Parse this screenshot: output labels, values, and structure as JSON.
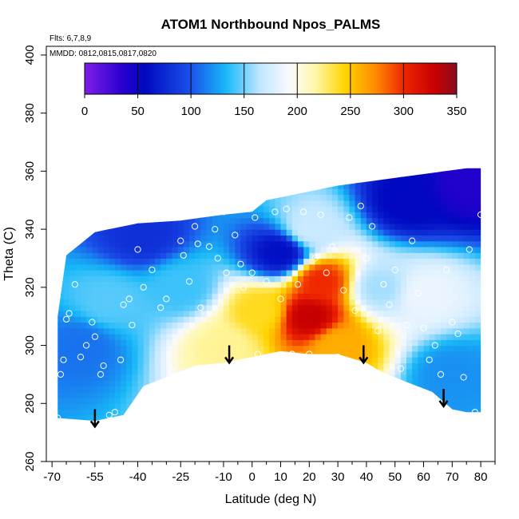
{
  "chart_data": {
    "type": "heatmap",
    "title": "ATOM1 Northbound Npos_PALMS",
    "xlabel": "Latitude (deg N)",
    "ylabel": "Theta (C)",
    "annotations": [
      "Flts: 6,7,8,9",
      "MMDD: 0812,0815,0817,0820"
    ],
    "xlim": [
      -72,
      85
    ],
    "ylim": [
      260,
      403
    ],
    "x_ticks": [
      -70,
      -55,
      -40,
      -25,
      -10,
      0,
      10,
      20,
      30,
      40,
      50,
      60,
      70,
      80
    ],
    "x_tick_labels": [
      "-70",
      "-55",
      "-40",
      "-25",
      "-10",
      "0",
      "10",
      "20",
      "30",
      "40",
      "50",
      "60",
      "70",
      "80"
    ],
    "x_minor_ticks": [
      -65,
      -60,
      -50,
      -45,
      -35,
      -30,
      -20,
      -15,
      -5,
      5,
      15,
      25,
      35,
      45,
      55,
      65,
      75,
      85
    ],
    "y_ticks": [
      260,
      280,
      300,
      320,
      340,
      360,
      380,
      400
    ],
    "y_tick_labels": [
      "260",
      "280",
      "300",
      "320",
      "340",
      "360",
      "380",
      "400"
    ],
    "colorbar": {
      "range": [
        0,
        350
      ],
      "ticks": [
        0,
        50,
        100,
        150,
        200,
        250,
        300,
        350
      ],
      "tick_labels": [
        "0",
        "50",
        "100",
        "150",
        "200",
        "250",
        "300",
        "350"
      ]
    },
    "data_envelope": {
      "top": [
        [
          -68,
          310
        ],
        [
          -65,
          331
        ],
        [
          -55,
          339
        ],
        [
          -40,
          342
        ],
        [
          -25,
          343
        ],
        [
          -10,
          345
        ],
        [
          0,
          346
        ],
        [
          5,
          350
        ],
        [
          15,
          352
        ],
        [
          30,
          355
        ],
        [
          45,
          357
        ],
        [
          60,
          359
        ],
        [
          75,
          361
        ],
        [
          80,
          361
        ]
      ],
      "bottom": [
        [
          80,
          277
        ],
        [
          75,
          277
        ],
        [
          70,
          278
        ],
        [
          63,
          284
        ],
        [
          55,
          287
        ],
        [
          45,
          291
        ],
        [
          40,
          294
        ],
        [
          30,
          297
        ],
        [
          20,
          297
        ],
        [
          10,
          298
        ],
        [
          0,
          296
        ],
        [
          -10,
          294
        ],
        [
          -20,
          293
        ],
        [
          -30,
          289
        ],
        [
          -38,
          286
        ],
        [
          -45,
          276
        ],
        [
          -55,
          274
        ],
        [
          -68,
          275
        ]
      ]
    },
    "hotspots": [
      {
        "x": 20,
        "y": 310,
        "value": 330
      },
      {
        "x": 24,
        "y": 322,
        "value": 300
      },
      {
        "x": 3,
        "y": 312,
        "value": 240
      },
      {
        "x": 30,
        "y": 300,
        "value": 260
      },
      {
        "x": -10,
        "y": 300,
        "value": 220
      },
      {
        "x": 10,
        "y": 332,
        "value": 60
      },
      {
        "x": -38,
        "y": 338,
        "value": 80
      },
      {
        "x": 55,
        "y": 350,
        "value": 55
      },
      {
        "x": 75,
        "y": 355,
        "value": 40
      },
      {
        "x": -60,
        "y": 300,
        "value": 110
      },
      {
        "x": 70,
        "y": 290,
        "value": 120
      },
      {
        "x": -25,
        "y": 320,
        "value": 140
      },
      {
        "x": 45,
        "y": 320,
        "value": 160
      },
      {
        "x": 60,
        "y": 318,
        "value": 185
      },
      {
        "x": -50,
        "y": 315,
        "value": 145
      },
      {
        "x": 20,
        "y": 340,
        "value": 170
      }
    ],
    "background_value": 125,
    "sample_points": [
      [
        -68,
        275
      ],
      [
        -67,
        290
      ],
      [
        -66,
        295
      ],
      [
        -65,
        309
      ],
      [
        -64,
        311
      ],
      [
        -62,
        321
      ],
      [
        -60,
        296
      ],
      [
        -58,
        300
      ],
      [
        -56,
        308
      ],
      [
        -55,
        303
      ],
      [
        -53,
        290
      ],
      [
        -52,
        293
      ],
      [
        -50,
        276
      ],
      [
        -48,
        277
      ],
      [
        -46,
        295
      ],
      [
        -45,
        314
      ],
      [
        -43,
        316
      ],
      [
        -42,
        307
      ],
      [
        -40,
        333
      ],
      [
        -38,
        320
      ],
      [
        -35,
        326
      ],
      [
        -32,
        313
      ],
      [
        -30,
        316
      ],
      [
        -28,
        291
      ],
      [
        -25,
        336
      ],
      [
        -24,
        331
      ],
      [
        -22,
        322
      ],
      [
        -20,
        341
      ],
      [
        -19,
        335
      ],
      [
        -18,
        313
      ],
      [
        -15,
        334
      ],
      [
        -13,
        340
      ],
      [
        -12,
        330
      ],
      [
        -10,
        346
      ],
      [
        -9,
        325
      ],
      [
        -6,
        338
      ],
      [
        -4,
        328
      ],
      [
        -3,
        320
      ],
      [
        0,
        325
      ],
      [
        1,
        344
      ],
      [
        2,
        297
      ],
      [
        5,
        322
      ],
      [
        8,
        346
      ],
      [
        10,
        316
      ],
      [
        12,
        347
      ],
      [
        14,
        297
      ],
      [
        16,
        321
      ],
      [
        18,
        346
      ],
      [
        20,
        297
      ],
      [
        22,
        330
      ],
      [
        24,
        345
      ],
      [
        26,
        325
      ],
      [
        28,
        334
      ],
      [
        30,
        296
      ],
      [
        32,
        319
      ],
      [
        34,
        344
      ],
      [
        36,
        312
      ],
      [
        38,
        348
      ],
      [
        40,
        330
      ],
      [
        42,
        341
      ],
      [
        44,
        305
      ],
      [
        46,
        321
      ],
      [
        48,
        314
      ],
      [
        50,
        326
      ],
      [
        52,
        292
      ],
      [
        54,
        307
      ],
      [
        56,
        336
      ],
      [
        58,
        318
      ],
      [
        60,
        306
      ],
      [
        62,
        295
      ],
      [
        64,
        300
      ],
      [
        66,
        290
      ],
      [
        68,
        326
      ],
      [
        70,
        308
      ],
      [
        72,
        304
      ],
      [
        74,
        289
      ],
      [
        76,
        333
      ],
      [
        78,
        277
      ],
      [
        80,
        345
      ],
      [
        82,
        300
      ]
    ],
    "arrows": [
      {
        "x": -55,
        "y_top": 278,
        "y_bottom": 272
      },
      {
        "x": -8,
        "y_top": 300,
        "y_bottom": 294
      },
      {
        "x": 39,
        "y_top": 300,
        "y_bottom": 294
      },
      {
        "x": 67,
        "y_top": 285,
        "y_bottom": 279
      }
    ]
  }
}
